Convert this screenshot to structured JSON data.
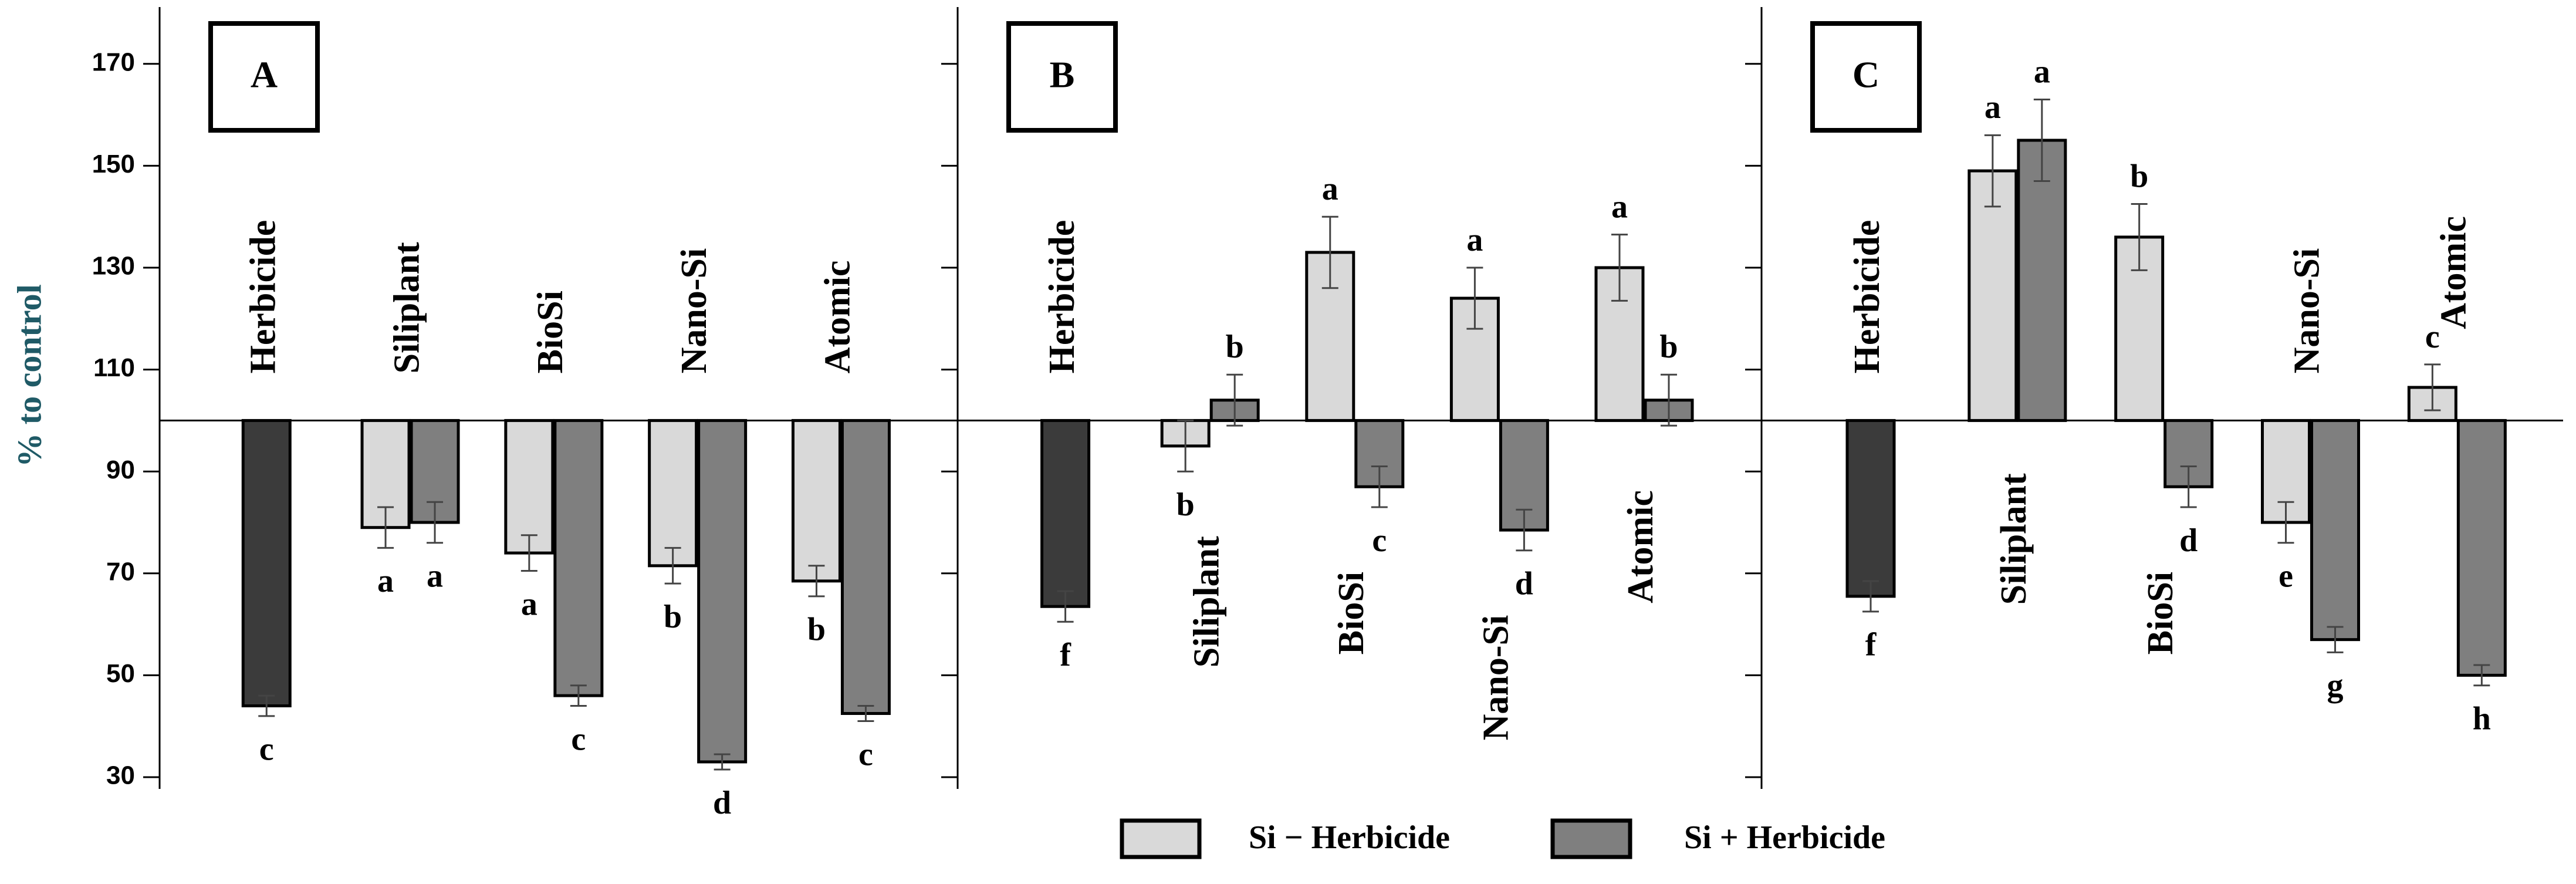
{
  "legend": [
    {
      "name": "Si − Herbicide",
      "color": "#d9d9d9"
    },
    {
      "name": "Si + Herbicide",
      "color": "#7f7f7f"
    }
  ],
  "chart_data": [
    {
      "type": "bar",
      "panel": "A",
      "y_label": "% to control",
      "categories": [
        "Herbicide",
        "Siliplant",
        "BioSi",
        "Nano-Si",
        "Atomic"
      ],
      "baseline": 100,
      "ylim": [
        30,
        180
      ],
      "yticks": [
        30,
        50,
        70,
        90,
        110,
        130,
        150,
        170
      ],
      "herbicide_bar": {
        "value": 44,
        "error": 2,
        "letter": "c",
        "color": "#3b3b3b"
      },
      "series": [
        {
          "values": [
            null,
            79,
            74,
            71.5,
            68.5
          ],
          "errors": [
            null,
            4,
            3.5,
            3.5,
            3
          ],
          "letters": [
            null,
            "a",
            "a",
            "b",
            "b"
          ]
        },
        {
          "values": [
            null,
            80,
            46,
            33,
            42.5
          ],
          "errors": [
            null,
            4,
            2,
            1.5,
            1.5
          ],
          "letters": [
            null,
            "a",
            "c",
            "d",
            "c"
          ]
        }
      ]
    },
    {
      "type": "bar",
      "panel": "B",
      "categories": [
        "Herbicide",
        "Siliplant",
        "BioSi",
        "Nano-Si",
        "Atomic"
      ],
      "baseline": 100,
      "ylim": [
        30,
        180
      ],
      "yticks": [
        30,
        50,
        70,
        90,
        110,
        130,
        150,
        170
      ],
      "herbicide_bar": {
        "value": 63.5,
        "error": 3,
        "letter": "f",
        "color": "#3b3b3b"
      },
      "series": [
        {
          "values": [
            null,
            95,
            133,
            124,
            130
          ],
          "errors": [
            null,
            5,
            7,
            6,
            6.5
          ],
          "letters": [
            null,
            "b",
            "a",
            "a",
            "a"
          ]
        },
        {
          "values": [
            null,
            104,
            87,
            78.5,
            104
          ],
          "errors": [
            null,
            5,
            4,
            4,
            5
          ],
          "letters": [
            null,
            "b",
            "c",
            "d",
            "b"
          ]
        }
      ]
    },
    {
      "type": "bar",
      "panel": "C",
      "categories": [
        "Herbicide",
        "Siliplant",
        "BioSi",
        "Nano-Si",
        "Atomic"
      ],
      "baseline": 100,
      "ylim": [
        30,
        180
      ],
      "yticks": [
        30,
        50,
        70,
        90,
        110,
        130,
        150,
        170
      ],
      "herbicide_bar": {
        "value": 65.5,
        "error": 3,
        "letter": "f",
        "color": "#3b3b3b"
      },
      "series": [
        {
          "values": [
            null,
            149,
            136,
            80,
            106.5
          ],
          "errors": [
            null,
            7,
            6.5,
            4,
            4.5
          ],
          "letters": [
            null,
            "a",
            "b",
            "e",
            "c"
          ]
        },
        {
          "values": [
            null,
            155,
            87,
            57,
            50
          ],
          "errors": [
            null,
            8,
            4,
            2.5,
            2
          ],
          "letters": [
            null,
            "a",
            "d",
            "g",
            "h"
          ]
        }
      ]
    }
  ]
}
